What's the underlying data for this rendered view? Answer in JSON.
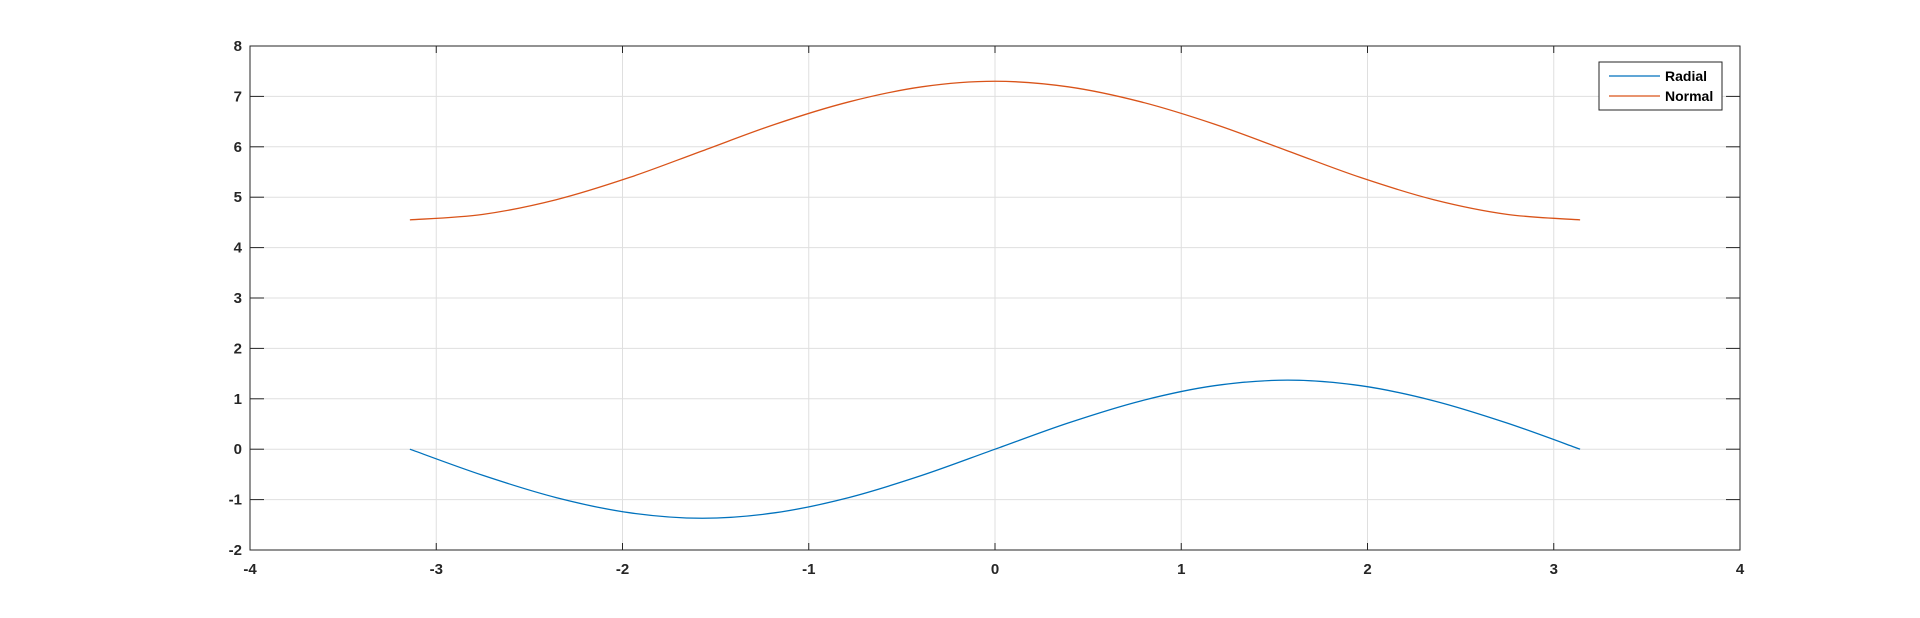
{
  "chart_data": {
    "type": "line",
    "title": "",
    "xlabel": "",
    "ylabel": "",
    "xlim": [
      -4,
      4
    ],
    "ylim": [
      -2,
      8
    ],
    "x_ticks": [
      -4,
      -3,
      -2,
      -1,
      0,
      1,
      2,
      3,
      4
    ],
    "y_ticks": [
      -2,
      -1,
      0,
      1,
      2,
      3,
      4,
      5,
      6,
      7,
      8
    ],
    "grid": true,
    "legend_position": "top-right",
    "series": [
      {
        "name": "Radial",
        "color": "#0072BD",
        "x": [
          -3.1416,
          -2.7489,
          -2.3562,
          -1.9635,
          -1.5708,
          -1.1781,
          -0.7854,
          -0.3927,
          0,
          0.3927,
          0.7854,
          1.1781,
          1.5708,
          1.9635,
          2.3562,
          2.7489,
          3.1416
        ],
        "values": [
          0,
          -0.52,
          -0.96,
          -1.26,
          -1.37,
          -1.26,
          -0.96,
          -0.52,
          0,
          0.52,
          0.96,
          1.26,
          1.37,
          1.26,
          0.96,
          0.52,
          0
        ]
      },
      {
        "name": "Normal",
        "color": "#D95319",
        "x": [
          -3.1416,
          -2.7489,
          -2.3562,
          -1.9635,
          -1.5708,
          -1.1781,
          -0.7854,
          -0.3927,
          0,
          0.3927,
          0.7854,
          1.1781,
          1.5708,
          1.9635,
          2.3562,
          2.7489,
          3.1416
        ],
        "values": [
          4.55,
          4.66,
          4.95,
          5.39,
          5.92,
          6.45,
          6.89,
          7.19,
          7.3,
          7.19,
          6.89,
          6.45,
          5.92,
          5.39,
          4.95,
          4.66,
          4.55
        ]
      }
    ]
  }
}
